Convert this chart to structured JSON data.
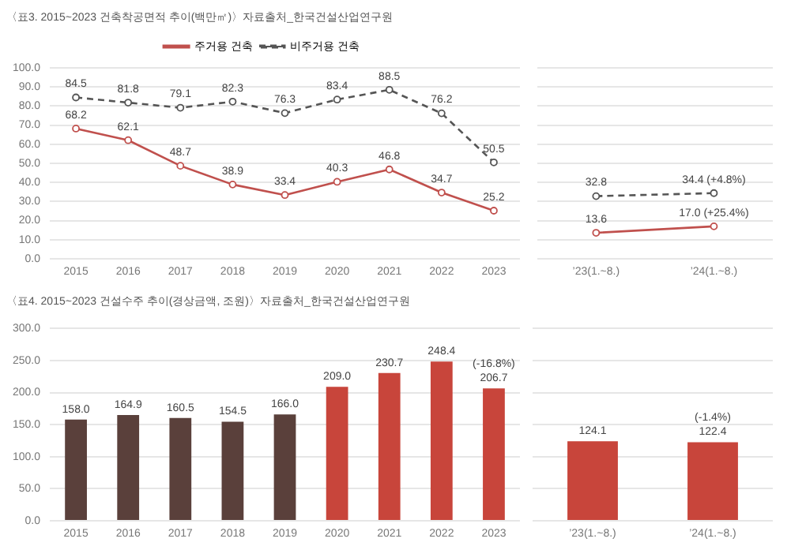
{
  "chart_data": [
    {
      "type": "line",
      "title": "〈표3. 2015~2023 건축착공면적 추이(백만㎡)〉자료출처_한국건설산업연구원",
      "categories": [
        "2015",
        "2016",
        "2017",
        "2018",
        "2019",
        "2020",
        "2021",
        "2022",
        "2023"
      ],
      "series": [
        {
          "name": "주거용 건축",
          "color": "#c0504d",
          "line_style": "solid",
          "values": [
            68.2,
            62.1,
            48.7,
            38.9,
            33.4,
            40.3,
            46.8,
            34.7,
            25.2
          ],
          "value_labels": [
            "68.2",
            "62.1",
            "48.7",
            "38.9",
            "33.4",
            "40.3",
            "46.8",
            "34.7",
            "25.2"
          ]
        },
        {
          "name": "비주거용 건축",
          "color": "#555555",
          "line_style": "dashed",
          "values": [
            84.5,
            81.8,
            79.1,
            82.3,
            76.3,
            83.4,
            88.5,
            76.2,
            50.5
          ],
          "value_labels": [
            "84.5",
            "81.8",
            "79.1",
            "82.3",
            "76.3",
            "83.4",
            "88.5",
            "76.2",
            "50.5"
          ]
        }
      ],
      "ylim": [
        0,
        100
      ],
      "yticks": [
        {
          "value": 0,
          "label": "0.0"
        },
        {
          "value": 10,
          "label": "10.0"
        },
        {
          "value": 20,
          "label": "20.0"
        },
        {
          "value": 30,
          "label": "30.0"
        },
        {
          "value": 40,
          "label": "40.0"
        },
        {
          "value": 50,
          "label": "50.0"
        },
        {
          "value": 60,
          "label": "60.0"
        },
        {
          "value": 70,
          "label": "70.0"
        },
        {
          "value": 80,
          "label": "80.0"
        },
        {
          "value": 90,
          "label": "90.0"
        },
        {
          "value": 100,
          "label": "100.0"
        }
      ],
      "grid": "y",
      "legend": "top",
      "marker": "circle"
    },
    {
      "type": "line",
      "categories": [
        "’23(1.~8.)",
        "’24(1.~8.)"
      ],
      "series": [
        {
          "color": "#c0504d",
          "line_style": "solid",
          "values": [
            13.6,
            17.0
          ],
          "value_labels": [
            "13.6",
            "17.0 (+25.4%)"
          ]
        },
        {
          "color": "#555555",
          "line_style": "dashed",
          "values": [
            32.8,
            34.4
          ],
          "value_labels": [
            "32.8",
            "34.4 (+4.8%)"
          ]
        }
      ],
      "ylim": [
        0,
        100
      ],
      "yticks": [
        0,
        10,
        20,
        30,
        40,
        50,
        60,
        70,
        80,
        90,
        100
      ],
      "grid": "y",
      "tick_labels": "x",
      "marker": "circle"
    },
    {
      "type": "bar",
      "title": "〈표4. 2015~2023 건설수주 추이(경상금액, 조원)〉자료출처_한국건설산업연구원",
      "categories": [
        "2015",
        "2016",
        "2017",
        "2018",
        "2019",
        "2020",
        "2021",
        "2022",
        "2023"
      ],
      "values": [
        158.0,
        164.9,
        160.5,
        154.5,
        166.0,
        209.0,
        230.7,
        248.4,
        206.7
      ],
      "value_labels": [
        "158.0",
        "164.9",
        "160.5",
        "154.5",
        "166.0",
        "209.0",
        "230.7",
        "248.4",
        "206.7"
      ],
      "colors": [
        "#5a403b",
        "#5a403b",
        "#5a403b",
        "#5a403b",
        "#5a403b",
        "#c8453b",
        "#c8453b",
        "#c8453b",
        "#c8453b"
      ],
      "annotations": [
        {
          "text": "(-16.8%)",
          "x": "2023",
          "y": 206.7
        }
      ],
      "ylim": [
        0,
        300
      ],
      "yticks": [
        {
          "value": 0,
          "label": "0.0"
        },
        {
          "value": 50,
          "label": "50.0"
        },
        {
          "value": 100,
          "label": "100.0"
        },
        {
          "value": 150,
          "label": "150.0"
        },
        {
          "value": 200,
          "label": "200.0"
        },
        {
          "value": 250,
          "label": "250.0"
        },
        {
          "value": 300,
          "label": "300.0"
        }
      ],
      "grid": "y"
    },
    {
      "type": "bar",
      "categories": [
        "’23(1.~8.)",
        "’24(1.~8.)"
      ],
      "values": [
        124.1,
        122.4
      ],
      "value_labels": [
        "124.1",
        "122.4"
      ],
      "colors": [
        "#c8453b",
        "#c8453b"
      ],
      "annotations": [
        {
          "text": "(-1.4%)",
          "x": "’24(1.~8.)",
          "y": 122.4
        }
      ],
      "ylim": [
        0,
        300
      ],
      "yticks": [
        0,
        50,
        100,
        150,
        200,
        250,
        300
      ],
      "grid": "y",
      "tick_labels": "x"
    }
  ]
}
